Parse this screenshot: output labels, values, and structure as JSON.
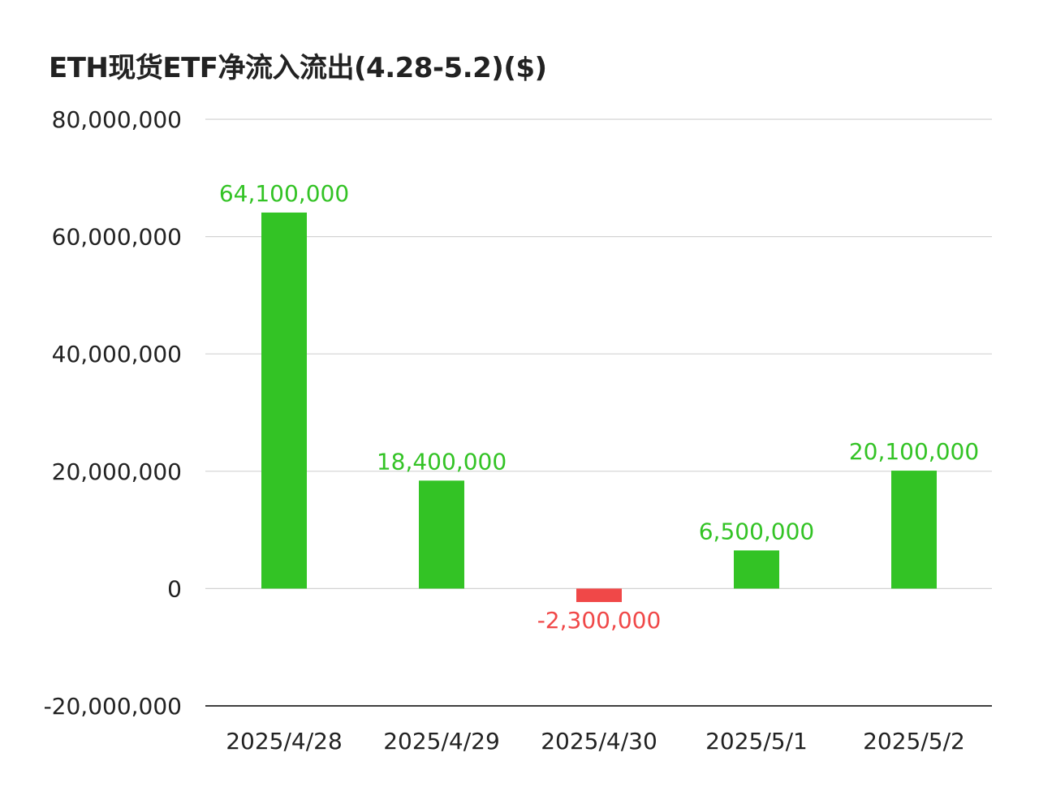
{
  "chart_data": {
    "type": "bar",
    "title": "ETH现货ETF净流入流出(4.28-5.2)($)",
    "categories": [
      "2025/4/28",
      "2025/4/29",
      "2025/4/30",
      "2025/5/1",
      "2025/5/2"
    ],
    "values": [
      64100000,
      18400000,
      -2300000,
      6500000,
      20100000
    ],
    "value_labels": [
      "64,100,000",
      "18,400,000",
      "-2,300,000",
      "6,500,000",
      "20,100,000"
    ],
    "yticks": [
      80000000,
      60000000,
      40000000,
      20000000,
      0,
      -20000000
    ],
    "ytick_labels": [
      "80,000,000",
      "60,000,000",
      "40,000,000",
      "20,000,000",
      "0",
      "-20,000,000"
    ],
    "ylim": [
      -20000000,
      80000000
    ],
    "grid": true,
    "legend": "none",
    "colors": {
      "positive": "#33c325",
      "negative": "#f04848",
      "positive_label": "#33c325",
      "negative_label": "#f04848",
      "gridline": "#d3d3d3",
      "baseline": "#404040",
      "tick_text": "#222222",
      "title": "#222222"
    }
  }
}
